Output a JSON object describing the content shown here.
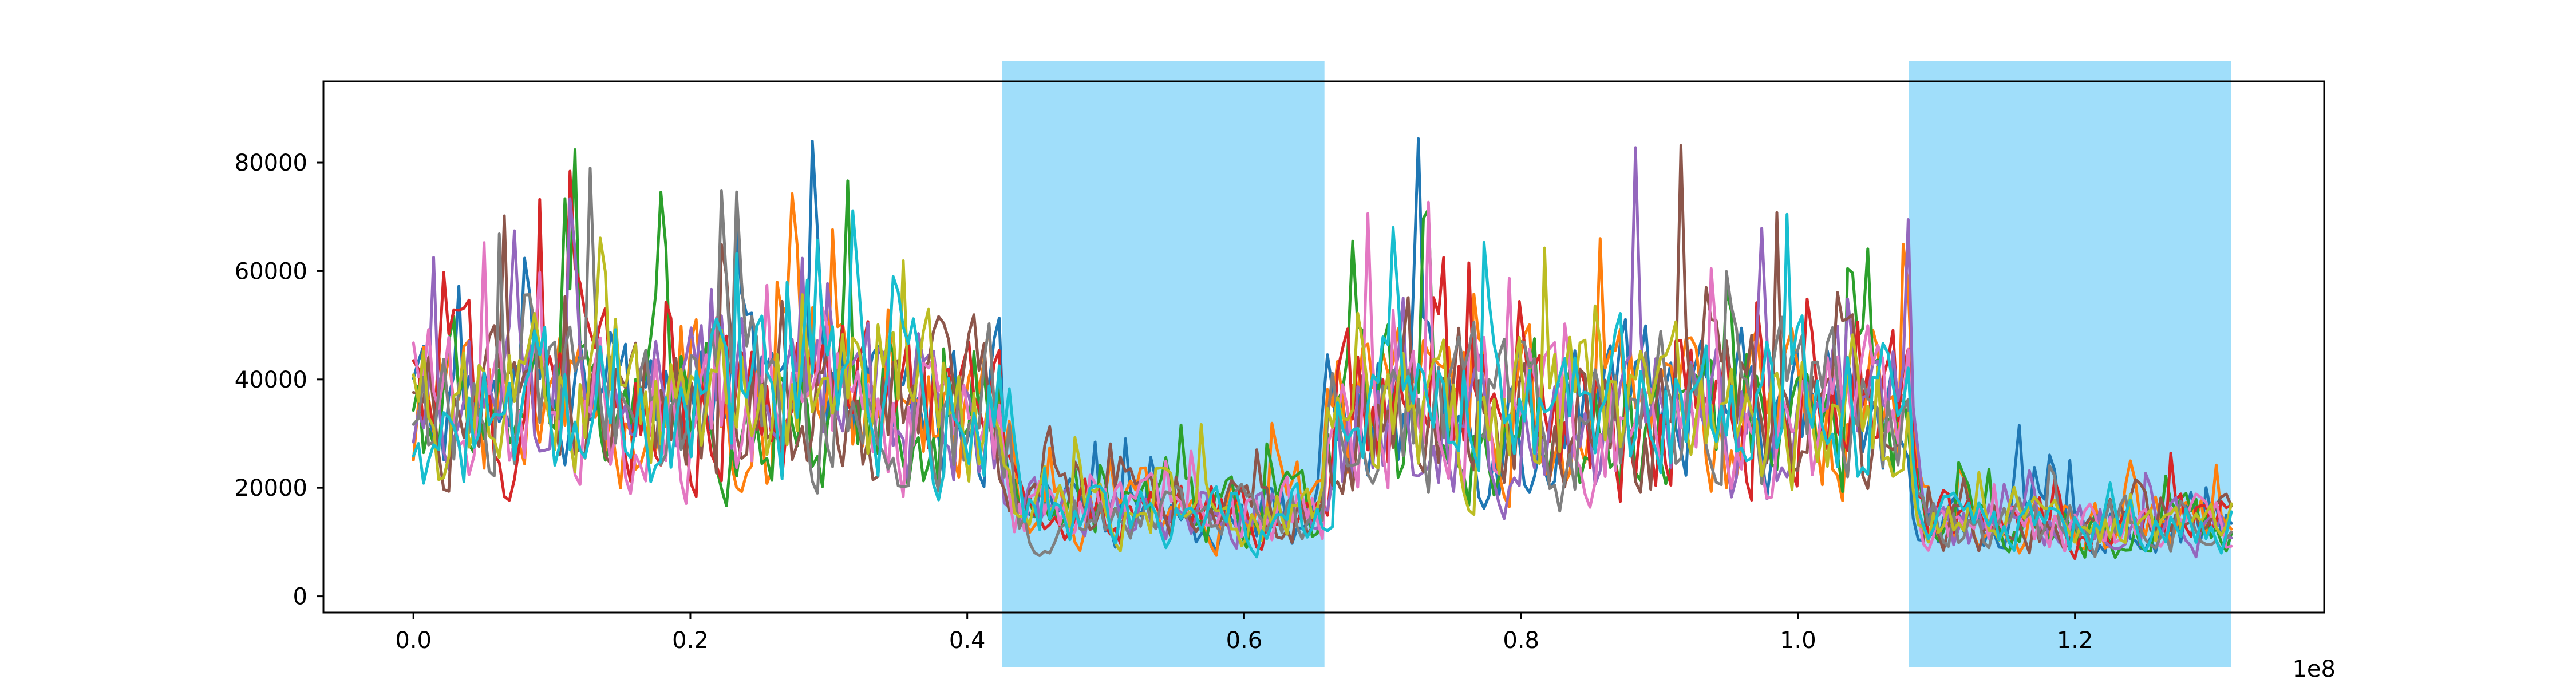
{
  "chart_data": {
    "type": "line",
    "title": "",
    "xlabel": "",
    "ylabel": "",
    "x_offset_label": "1e8",
    "xlim": [
      -0.065,
      1.38
    ],
    "ylim": [
      -3000,
      95000
    ],
    "x_ticks": [
      0.0,
      0.2,
      0.4,
      0.6,
      0.8,
      1.0,
      1.2
    ],
    "x_tick_labels": [
      "0.0",
      "0.2",
      "0.4",
      "0.6",
      "0.8",
      "1.0",
      "1.2"
    ],
    "y_ticks": [
      0,
      20000,
      40000,
      60000,
      80000
    ],
    "y_tick_labels": [
      "0",
      "20000",
      "40000",
      "60000",
      "80000"
    ],
    "grid": false,
    "legend": "none",
    "highlight_color": "#a0defa",
    "highlight_spans": [
      {
        "x0": 0.425,
        "x1": 0.658
      },
      {
        "x0": 1.08,
        "x1": 1.313
      }
    ],
    "x_range": [
      0.0,
      1.313
    ],
    "num_series": 10,
    "series_colors": [
      "#1f77b4",
      "#ff7f0e",
      "#2ca02c",
      "#d62728",
      "#9467bd",
      "#8c564b",
      "#e377c2",
      "#7f7f7f",
      "#bcbd22",
      "#17becf"
    ],
    "segment_profile": [
      {
        "x0": 0.0,
        "x1": 0.425,
        "base": 35000,
        "spread": 22000
      },
      {
        "x0": 0.425,
        "x1": 0.658,
        "base": 15000,
        "spread": 9000
      },
      {
        "x0": 0.658,
        "x1": 1.08,
        "base": 33000,
        "spread": 22000
      },
      {
        "x0": 1.08,
        "x1": 1.313,
        "base": 13000,
        "spread": 8000
      }
    ]
  }
}
